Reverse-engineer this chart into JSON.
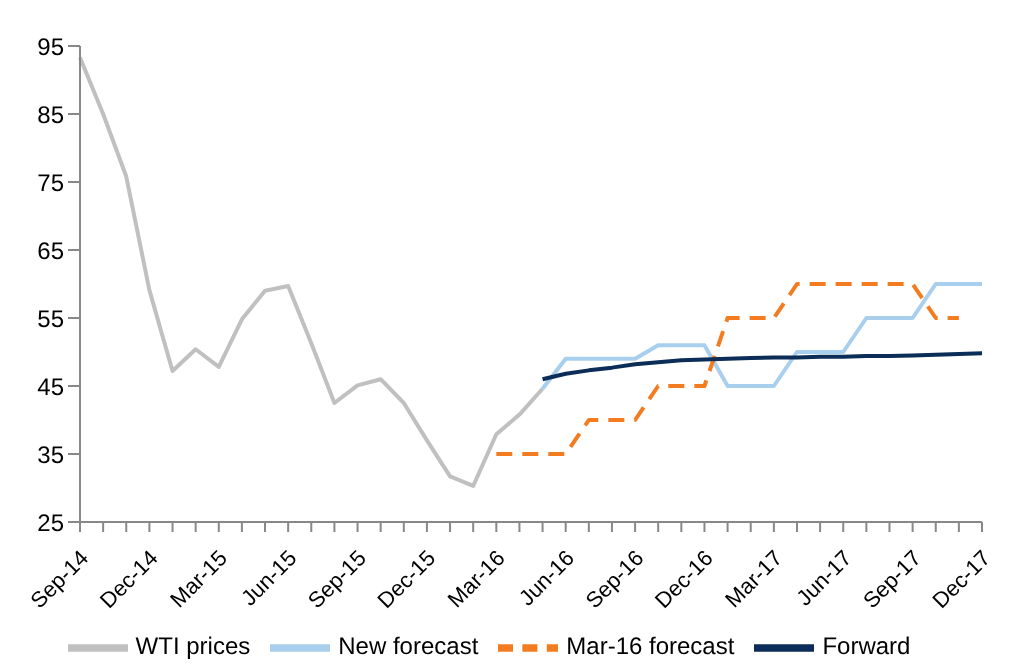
{
  "chart_data": {
    "type": "line",
    "categories": [
      "Sep-14",
      null,
      null,
      "Dec-14",
      null,
      null,
      "Mar-15",
      null,
      null,
      "Jun-15",
      null,
      null,
      "Sep-15",
      null,
      null,
      "Dec-15",
      null,
      null,
      "Mar-16",
      null,
      null,
      "Jun-16",
      null,
      null,
      "Sep-16",
      null,
      null,
      "Dec-16",
      null,
      null,
      "Mar-17",
      null,
      null,
      "Jun-17",
      null,
      null,
      "Sep-17",
      null,
      null,
      "Dec-17"
    ],
    "series": [
      {
        "name": "WTI prices",
        "color": "#c0c0c0",
        "values": [
          93.3,
          85,
          75.8,
          59.1,
          47.2,
          50.4,
          47.8,
          54.8,
          59,
          59.7,
          51.3,
          42.5,
          45.1,
          46,
          42.5,
          37,
          31.7,
          30.3,
          37.9,
          40.8,
          44.6,
          null,
          null,
          null,
          null,
          null,
          null,
          null,
          null,
          null,
          null,
          null,
          null,
          null,
          null,
          null,
          null,
          null,
          null,
          null
        ]
      },
      {
        "name": "New forecast",
        "color": "#a9cfee",
        "values": [
          null,
          null,
          null,
          null,
          null,
          null,
          null,
          null,
          null,
          null,
          null,
          null,
          null,
          null,
          null,
          null,
          null,
          null,
          null,
          null,
          44.6,
          49,
          49,
          49,
          49,
          51,
          51,
          51,
          45,
          45,
          45,
          50,
          50,
          50,
          55,
          55,
          55,
          60,
          60,
          60
        ]
      },
      {
        "name": "Mar-16 forecast",
        "color": "#f47c20",
        "line_style": "dashed",
        "values": [
          null,
          null,
          null,
          null,
          null,
          null,
          null,
          null,
          null,
          null,
          null,
          null,
          null,
          null,
          null,
          null,
          null,
          null,
          35,
          35,
          35,
          35,
          40,
          40,
          40,
          45,
          45,
          45,
          55,
          55,
          55,
          60,
          60,
          60,
          60,
          60,
          60,
          55,
          55,
          null
        ]
      },
      {
        "name": "Forward",
        "color": "#0b2d57",
        "values": [
          null,
          null,
          null,
          null,
          null,
          null,
          null,
          null,
          null,
          null,
          null,
          null,
          null,
          null,
          null,
          null,
          null,
          null,
          null,
          null,
          46,
          46.8,
          47.3,
          47.7,
          48.2,
          48.5,
          48.8,
          48.9,
          49,
          49.1,
          49.2,
          49.2,
          49.3,
          49.3,
          49.4,
          49.4,
          49.5,
          49.6,
          49.7,
          49.8
        ]
      }
    ],
    "ylim": [
      25,
      95
    ],
    "yticks": [
      25,
      35,
      45,
      55,
      65,
      75,
      85,
      95
    ],
    "grid": false,
    "legend": "bottom",
    "line_style": "solid",
    "marker": "none"
  }
}
